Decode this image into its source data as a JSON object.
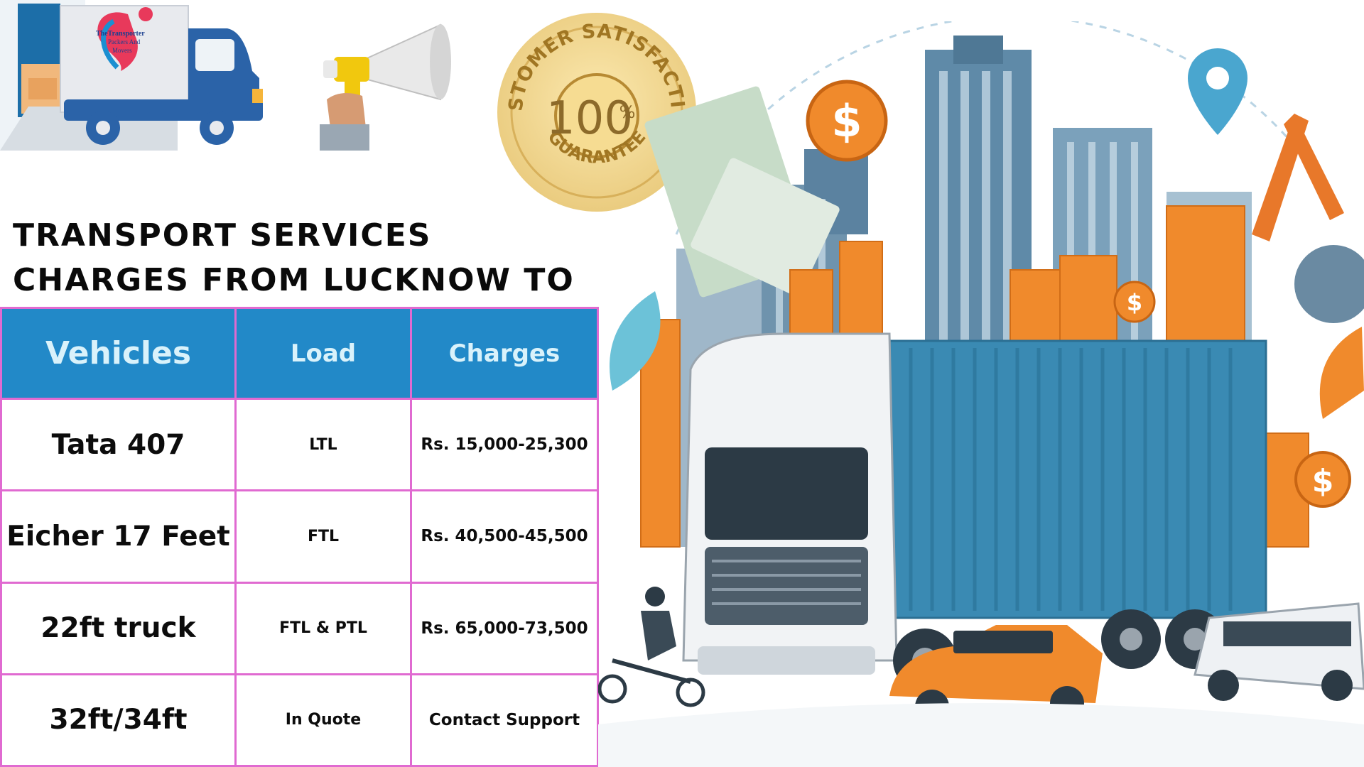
{
  "logo": {
    "brand_line1": "TheTransporter",
    "brand_line2": "Packers And",
    "brand_line3": "Movers"
  },
  "seal": {
    "top_text": "CUSTOMER SATISFACTION",
    "number": "100",
    "percent": "%",
    "bottom_text": "GUARANTEE"
  },
  "title": "Transport Services Charges from Lucknow to Ranchi",
  "table": {
    "headers": [
      "Vehicles",
      "Load",
      "Charges"
    ],
    "rows": [
      {
        "vehicle": "Tata 407",
        "load": "LTL",
        "charges": "Rs. 15,000-25,300"
      },
      {
        "vehicle": "Eicher 17 Feet",
        "load": "FTL",
        "charges": "Rs. 40,500-45,500"
      },
      {
        "vehicle": "22ft truck",
        "load": "FTL & PTL",
        "charges": "Rs. 65,000-73,500"
      },
      {
        "vehicle": "32ft/34ft",
        "load": "In Quote",
        "charges": "Contact Support"
      }
    ]
  },
  "colors": {
    "header_blue": "#2289c8",
    "border_pink": "#e06ad1",
    "coin_orange": "#f08a2c",
    "container_blue": "#3a8ab3"
  },
  "icons": [
    "truck-logo-icon",
    "megaphone-icon",
    "satisfaction-seal-icon",
    "dollar-coin-icon",
    "location-pin-icon"
  ]
}
